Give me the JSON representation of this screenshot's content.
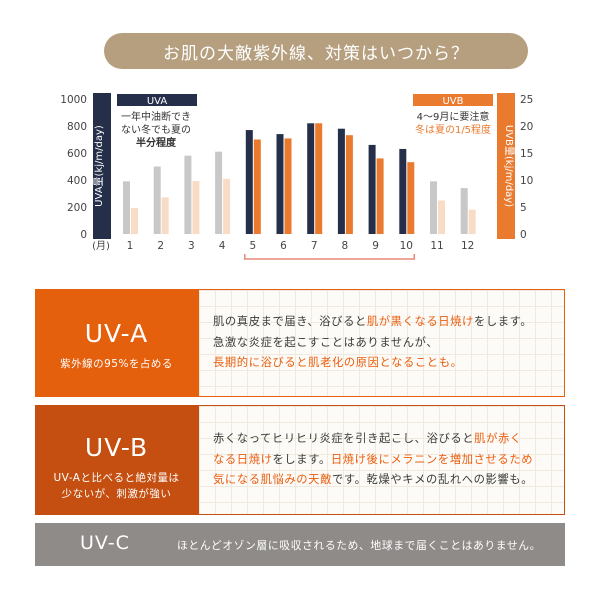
{
  "header": {
    "title": "お肌の大敵紫外線、対策はいつから？"
  },
  "chart_data": {
    "type": "bar",
    "categories": [
      "1",
      "2",
      "3",
      "4",
      "5",
      "6",
      "7",
      "8",
      "9",
      "10",
      "11",
      "12"
    ],
    "x_unit": "(月)",
    "series": [
      {
        "name": "UVA",
        "axis": "left",
        "values": [
          390,
          500,
          580,
          610,
          770,
          740,
          820,
          780,
          660,
          630,
          390,
          340
        ]
      },
      {
        "name": "UVB",
        "axis": "right",
        "values": [
          4.8,
          6.8,
          9.8,
          10.2,
          17.5,
          17.7,
          20.5,
          18.3,
          14.0,
          13.3,
          6.2,
          4.5
        ]
      }
    ],
    "highlight_months": [
      "5",
      "6",
      "7",
      "8",
      "9",
      "10"
    ],
    "ylabel_left": "UVA量(kj/m/day)",
    "ylabel_right": "UVB量(kj/m/day)",
    "ylim_left": [
      0,
      1000
    ],
    "ylim_right": [
      0,
      25
    ],
    "yticks_left": [
      "0",
      "200",
      "400",
      "600",
      "800",
      "1000"
    ],
    "yticks_right": [
      "0",
      "5",
      "10",
      "15",
      "20",
      "25"
    ],
    "annotations": {
      "uva": {
        "tag": "UVA",
        "lines": [
          "一年中油断でき",
          "ない冬でも夏の",
          "半分程度"
        ]
      },
      "uvb": {
        "tag": "UVB",
        "lines": [
          "4〜9月に要注意",
          "冬は夏の1/5程度"
        ]
      }
    },
    "colors": {
      "uva_dark": "#252f4a",
      "uva_light": "#c8c8c8",
      "uvb_dark": "#ea7a2e",
      "uvb_light": "#f9dcc6",
      "highlight_bracket": "#e88878"
    },
    "grid": false
  },
  "uv_a": {
    "title": "UV-A",
    "subtitle": "紫外線の95%を占める",
    "lines": [
      [
        {
          "t": "肌の真皮まで届き、浴びると"
        },
        {
          "t": "肌が黒くなる日焼け",
          "hl": true
        },
        {
          "t": "をします。"
        }
      ],
      [
        {
          "t": "急激な炎症を起こすことはありませんが、"
        }
      ],
      [
        {
          "t": "長期的に浴びると肌老化の原因となることも。",
          "hl": true
        }
      ]
    ]
  },
  "uv_b": {
    "title": "UV-B",
    "subtitle_lines": [
      "UV-Aと比べると絶対量は",
      "少ないが、刺激が強い"
    ],
    "lines": [
      [
        {
          "t": "赤くなってヒリヒリ炎症を引き起こし、浴びると"
        },
        {
          "t": "肌が赤く",
          "hl": true
        }
      ],
      [
        {
          "t": "なる日焼け",
          "hl": true
        },
        {
          "t": "をします。"
        },
        {
          "t": "日焼け後にメラニンを増加させるため",
          "hl": true
        }
      ],
      [
        {
          "t": "気になる肌悩みの天敵",
          "hl": true
        },
        {
          "t": "です。乾燥やキメの乱れへの影響も。"
        }
      ]
    ]
  },
  "uv_c": {
    "title": "UV-C",
    "text": "ほとんどオゾン層に吸収されるため、地球まで届くことはありません。"
  }
}
